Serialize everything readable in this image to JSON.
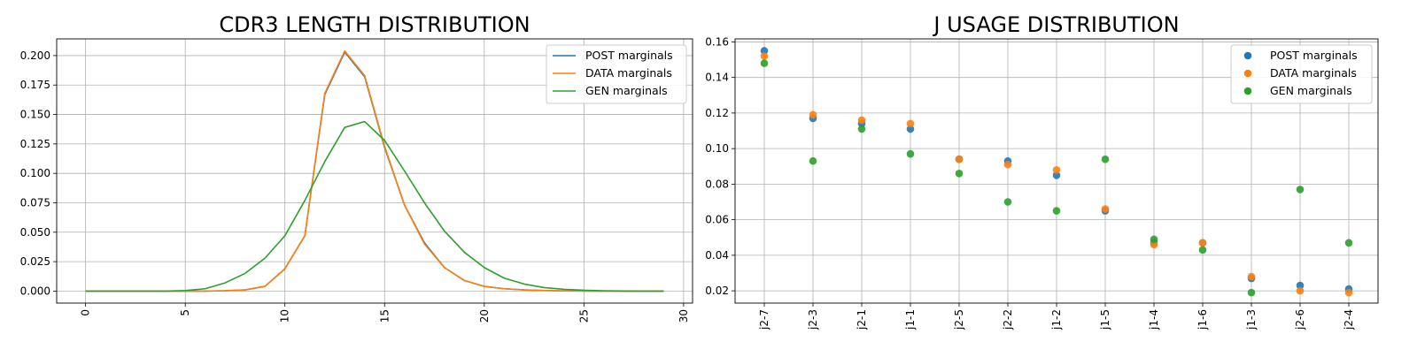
{
  "chart_data": [
    {
      "type": "line",
      "title": "CDR3 LENGTH DISTRIBUTION",
      "xlabel": "",
      "ylabel": "",
      "xlim": [
        -1.45,
        30.45
      ],
      "ylim": [
        -0.0102,
        0.2142
      ],
      "xticks": [
        0,
        5,
        10,
        15,
        20,
        25,
        30
      ],
      "xtick_labels": [
        "0",
        "5",
        "10",
        "15",
        "20",
        "25",
        "30"
      ],
      "yticks": [
        0.0,
        0.025,
        0.05,
        0.075,
        0.1,
        0.125,
        0.15,
        0.175,
        0.2
      ],
      "ytick_labels": [
        "0.000",
        "0.025",
        "0.050",
        "0.075",
        "0.100",
        "0.125",
        "0.150",
        "0.175",
        "0.200"
      ],
      "grid": true,
      "legend_position": "top-right",
      "x": [
        0,
        1,
        2,
        3,
        4,
        5,
        6,
        7,
        8,
        9,
        10,
        11,
        12,
        13,
        14,
        15,
        16,
        17,
        18,
        19,
        20,
        21,
        22,
        23,
        24,
        25,
        26,
        27,
        28,
        29
      ],
      "series": [
        {
          "name": "POST marginals",
          "color": "#1f77b4",
          "values": [
            0,
            0,
            0,
            0,
            0,
            0,
            0,
            0.0003,
            0.001,
            0.004,
            0.019,
            0.047,
            0.167,
            0.203,
            0.182,
            0.122,
            0.073,
            0.041,
            0.02,
            0.009,
            0.004,
            0.002,
            0.001,
            0.0005,
            0.0002,
            0.0001,
            0,
            0,
            0,
            0
          ]
        },
        {
          "name": "DATA marginals",
          "color": "#ff7f0e",
          "values": [
            0,
            0,
            0,
            0,
            0,
            0,
            0,
            0.0003,
            0.001,
            0.004,
            0.019,
            0.047,
            0.168,
            0.204,
            0.183,
            0.123,
            0.073,
            0.04,
            0.02,
            0.009,
            0.004,
            0.002,
            0.001,
            0.0005,
            0.0002,
            0.0001,
            0,
            0,
            0,
            0
          ]
        },
        {
          "name": "GEN marginals",
          "color": "#2ca02c",
          "values": [
            0,
            0,
            0,
            0,
            0,
            0.0005,
            0.002,
            0.007,
            0.015,
            0.028,
            0.047,
            0.077,
            0.11,
            0.139,
            0.144,
            0.128,
            0.102,
            0.075,
            0.051,
            0.033,
            0.02,
            0.011,
            0.006,
            0.003,
            0.0015,
            0.0007,
            0.0003,
            0.0001,
            0,
            0
          ]
        }
      ]
    },
    {
      "type": "scatter",
      "title": "J USAGE DISTRIBUTION",
      "xlabel": "",
      "ylabel": "",
      "ylim": [
        0.0131,
        0.1617
      ],
      "yticks": [
        0.02,
        0.04,
        0.06,
        0.08,
        0.1,
        0.12,
        0.14,
        0.16
      ],
      "ytick_labels": [
        "0.02",
        "0.04",
        "0.06",
        "0.08",
        "0.10",
        "0.12",
        "0.14",
        "0.16"
      ],
      "grid": true,
      "legend_position": "top-right",
      "categories": [
        "j2-7",
        "j2-3",
        "j2-1",
        "j1-1",
        "j2-5",
        "j2-2",
        "j1-2",
        "j1-5",
        "j1-4",
        "j1-6",
        "j1-3",
        "j2-6",
        "j2-4"
      ],
      "series": [
        {
          "name": "POST marginals",
          "color": "#1f77b4",
          "values": [
            0.155,
            0.117,
            0.114,
            0.111,
            0.094,
            0.093,
            0.085,
            0.065,
            0.047,
            0.047,
            0.027,
            0.023,
            0.021
          ]
        },
        {
          "name": "DATA marginals",
          "color": "#ff7f0e",
          "values": [
            0.152,
            0.119,
            0.116,
            0.114,
            0.094,
            0.091,
            0.088,
            0.066,
            0.046,
            0.047,
            0.028,
            0.02,
            0.019
          ]
        },
        {
          "name": "GEN marginals",
          "color": "#2ca02c",
          "values": [
            0.148,
            0.093,
            0.111,
            0.097,
            0.086,
            0.07,
            0.065,
            0.094,
            0.049,
            0.043,
            0.019,
            0.077,
            0.047
          ]
        }
      ]
    }
  ]
}
